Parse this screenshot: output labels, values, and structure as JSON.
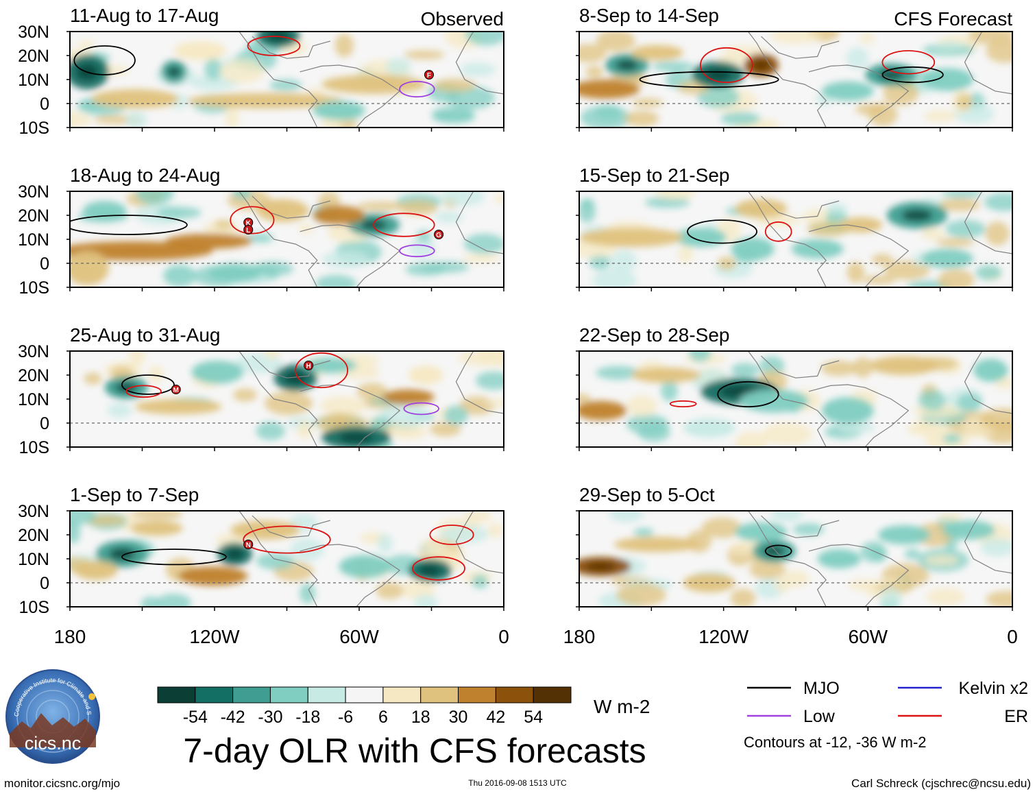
{
  "figure": {
    "title": "7-day OLR with CFS forecasts",
    "observed_label": "Observed",
    "forecast_label": "CFS Forecast",
    "units": "W m-2",
    "website": "monitor.cicsnc.org/mjo",
    "timestamp": "Thu 2016-09-08 1513 UTC",
    "author": "Carl Schreck (cjschrec@ncsu.edu)",
    "logo_text": "cics.nc",
    "logo_ring_text": "Cooperative Institute for Climate and Satellites",
    "contour_note": "Contours at -12, -36 W m-2"
  },
  "chart_data": {
    "type": "heatmap",
    "variable": "OLR anomaly",
    "lat_ticks": [
      "30N",
      "20N",
      "10N",
      "0",
      "10S"
    ],
    "lon_ticks": [
      "180",
      "120W",
      "60W",
      "0"
    ],
    "lat_range": [
      -10,
      30
    ],
    "lon_range": [
      -180,
      0
    ],
    "panels": [
      {
        "title": "11-Aug to 17-Aug",
        "group": "observed"
      },
      {
        "title": "18-Aug to 24-Aug",
        "group": "observed"
      },
      {
        "title": "25-Aug to 31-Aug",
        "group": "observed"
      },
      {
        "title": "1-Sep to 7-Sep",
        "group": "observed"
      },
      {
        "title": "8-Sep to 14-Sep",
        "group": "forecast"
      },
      {
        "title": "15-Sep to 21-Sep",
        "group": "forecast"
      },
      {
        "title": "22-Sep to 28-Sep",
        "group": "forecast"
      },
      {
        "title": "29-Sep to 5-Oct",
        "group": "forecast"
      }
    ],
    "colorbar": {
      "labels": [
        "-54",
        "-42",
        "-30",
        "-18",
        "-6",
        "6",
        "18",
        "30",
        "42",
        "54"
      ],
      "colors": [
        "#0b3f36",
        "#136e63",
        "#3f9e91",
        "#80cdc1",
        "#c7eae5",
        "#f5f5f5",
        "#f6e8c3",
        "#dfc27d",
        "#bf812d",
        "#8c510a",
        "#543005"
      ]
    },
    "legend": [
      {
        "label": "MJO",
        "color": "#000000"
      },
      {
        "label": "Kelvin x2",
        "color": "#2222cc"
      },
      {
        "label": "Low",
        "color": "#a040e0"
      },
      {
        "label": "ER",
        "color": "#dd1111"
      }
    ],
    "storm_markers": [
      {
        "panel": 0,
        "letter": "F",
        "lon": -31,
        "lat": 12
      },
      {
        "panel": 1,
        "letter": "K",
        "lon": -106,
        "lat": 17
      },
      {
        "panel": 1,
        "letter": "L",
        "lon": -106,
        "lat": 14
      },
      {
        "panel": 1,
        "letter": "G",
        "lon": -27,
        "lat": 12
      },
      {
        "panel": 2,
        "letter": "M",
        "lon": -136,
        "lat": 14
      },
      {
        "panel": 2,
        "letter": "H",
        "lon": -81,
        "lat": 24
      },
      {
        "panel": 3,
        "letter": "N",
        "lon": -106,
        "lat": 16
      }
    ]
  }
}
